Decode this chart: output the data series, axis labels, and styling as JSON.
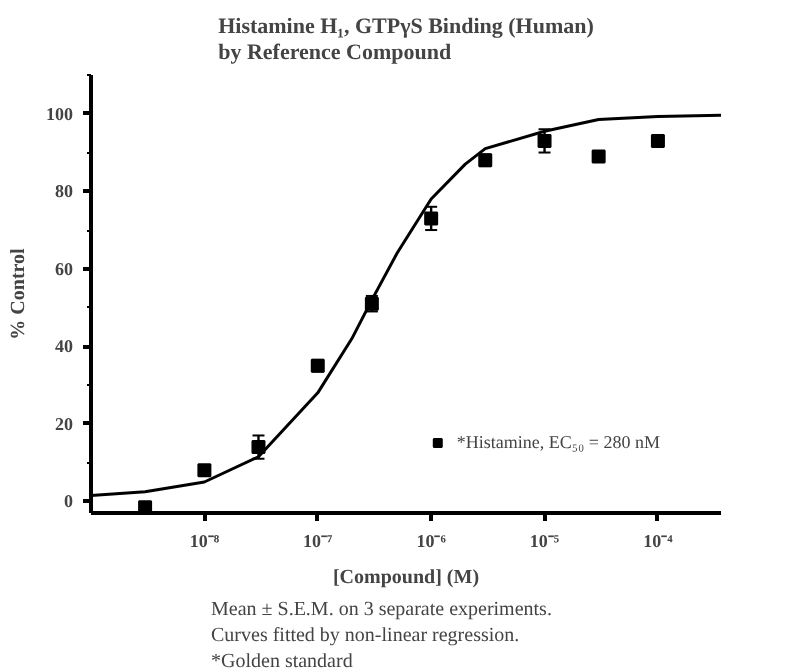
{
  "chart_data": {
    "type": "scatter",
    "title": "Histamine H₁, GTPγS Binding (Human)\nby Reference Compound",
    "xlabel": "[Compound] (M)",
    "ylabel": "% Control",
    "log": "x",
    "xlim": [
      1e-09,
      0.00036
    ],
    "xticks": [
      {
        "value": 1e-08,
        "label": "10⁻⁸"
      },
      {
        "value": 1e-07,
        "label": "10⁻⁷"
      },
      {
        "value": 1e-06,
        "label": "10⁻⁶"
      },
      {
        "value": 1e-05,
        "label": "10⁻⁵"
      },
      {
        "value": 0.0001,
        "label": "10⁻⁴"
      }
    ],
    "ylim": [
      -3,
      110
    ],
    "yticks": [
      0,
      20,
      40,
      60,
      80,
      100
    ],
    "grid": false,
    "legend": "bottom right",
    "series": [
      {
        "name": "*Histamine, EC₅₀ = 280 nM",
        "marker": "square",
        "color": "#000000",
        "x": [
          3e-09,
          1e-08,
          3e-08,
          1e-07,
          3e-07,
          1e-06,
          3e-06,
          1e-05,
          3e-05,
          0.0001
        ],
        "values": [
          -1.5,
          8,
          14,
          35,
          51,
          73,
          88,
          93,
          89,
          93
        ],
        "errors": [
          null,
          null,
          3,
          1.5,
          2,
          3,
          1.5,
          3,
          null,
          null
        ]
      },
      {
        "type": "line",
        "marker": "none",
        "line_style": "solid",
        "color": "#000000",
        "x": [
          1e-09,
          3e-09,
          1e-08,
          3e-08,
          1e-07,
          2e-07,
          3e-07,
          5e-07,
          1e-06,
          2e-06,
          3e-06,
          1e-05,
          3e-05,
          0.0001,
          0.00036
        ],
        "values": [
          1.5,
          2.5,
          5,
          11.5,
          28,
          42,
          52,
          64,
          78,
          87,
          91,
          95.5,
          98.5,
          99.3,
          99.6
        ]
      }
    ],
    "annotations": [
      "Mean ± S.E.M. on 3 separate experiments.",
      "Curves fitted by non-linear regression.",
      "*Golden standard"
    ]
  }
}
